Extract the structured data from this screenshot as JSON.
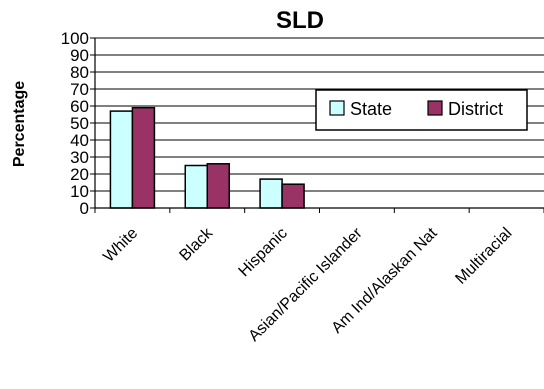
{
  "chart_data": {
    "type": "bar",
    "title": "SLD",
    "xlabel": "",
    "ylabel": "Percentage",
    "ylim": [
      0,
      100
    ],
    "yticks": [
      0,
      10,
      20,
      30,
      40,
      50,
      60,
      70,
      80,
      90,
      100
    ],
    "grid": "horizontal",
    "legend_position": "right",
    "categories": [
      "White",
      "Black",
      "Hispanic",
      "Asian/Pacific Islander",
      "Am Ind/Alaskan Nat",
      "Multiracial"
    ],
    "series": [
      {
        "name": "State",
        "color": "#ccffff",
        "values": [
          57,
          25,
          17,
          null,
          null,
          null
        ]
      },
      {
        "name": "District",
        "color": "#993366",
        "values": [
          59,
          26,
          14,
          null,
          null,
          null
        ]
      }
    ]
  }
}
